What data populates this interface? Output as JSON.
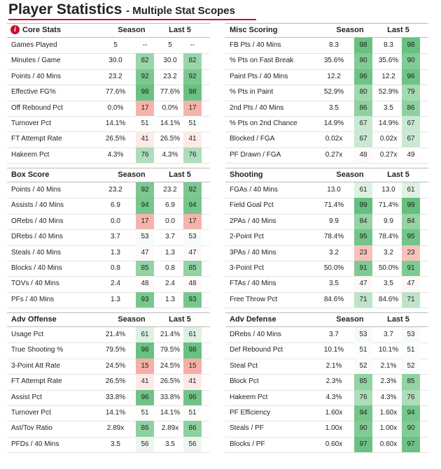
{
  "header": {
    "title": "Player Statistics",
    "subtitle": "- Multiple Stat Scopes"
  },
  "sections": [
    {
      "title": "Core Stats",
      "columns": [
        "Season",
        "Last 5"
      ],
      "rows": [
        [
          "Games Played",
          "5",
          "--",
          "5",
          "--"
        ],
        [
          "Minutes / Game",
          "30.0",
          82,
          "30.0",
          82
        ],
        [
          "Points / 40 Mins",
          "23.2",
          92,
          "23.2",
          92
        ],
        [
          "Effective FG%",
          "77.6%",
          98,
          "77.6%",
          98
        ],
        [
          "Off Rebound Pct",
          "0.0%",
          17,
          "0.0%",
          17
        ],
        [
          "Turnover Pct",
          "14.1%",
          51,
          "14.1%",
          51
        ],
        [
          "FT Attempt Rate",
          "26.5%",
          41,
          "26.5%",
          41
        ],
        [
          "Hakeem Pct",
          "4.3%",
          76,
          "4.3%",
          76
        ]
      ]
    },
    {
      "title": "Misc Scoring",
      "columns": [
        "Season",
        "Last 5"
      ],
      "rows": [
        [
          "FB Pts / 40 Mins",
          "8.3",
          98,
          "8.3",
          98
        ],
        [
          "% Pts on Fast Break",
          "35.6%",
          90,
          "35.6%",
          90
        ],
        [
          "Paint Pts / 40 Mins",
          "12.2",
          96,
          "12.2",
          96
        ],
        [
          "% Pts in Paint",
          "52.9%",
          80,
          "52.9%",
          79
        ],
        [
          "2nd Pts / 40 Mins",
          "3.5",
          86,
          "3.5",
          86
        ],
        [
          "% Pts on 2nd Chance",
          "14.9%",
          67,
          "14.9%",
          67
        ],
        [
          "Blocked / FGA",
          "0.02x",
          67,
          "0.02x",
          67
        ],
        [
          "PF Drawn / FGA",
          "0.27x",
          48,
          "0.27x",
          49
        ]
      ]
    },
    {
      "title": "Box Score",
      "columns": [
        "Season",
        "Last 5"
      ],
      "rows": [
        [
          "Points / 40 Mins",
          "23.2",
          92,
          "23.2",
          92
        ],
        [
          "Assists / 40 Mins",
          "6.9",
          94,
          "6.9",
          94
        ],
        [
          "ORebs / 40 Mins",
          "0.0",
          17,
          "0.0",
          17
        ],
        [
          "DRebs / 40 Mins",
          "3.7",
          53,
          "3.7",
          53
        ],
        [
          "Steals / 40 Mins",
          "1.3",
          47,
          "1.3",
          47
        ],
        [
          "Blocks / 40 Mins",
          "0.8",
          85,
          "0.8",
          85
        ],
        [
          "TOVs / 40 Mins",
          "2.4",
          48,
          "2.4",
          48
        ],
        [
          "PFs / 40 Mins",
          "1.3",
          93,
          "1.3",
          93
        ]
      ]
    },
    {
      "title": "Shooting",
      "columns": [
        "Season",
        "Last 5"
      ],
      "rows": [
        [
          "FGAs / 40 Mins",
          "13.0",
          61,
          "13.0",
          61
        ],
        [
          "Field Goal Pct",
          "71.4%",
          99,
          "71.4%",
          99
        ],
        [
          "2PAs / 40 Mins",
          "9.9",
          84,
          "9.9",
          84
        ],
        [
          "2-Point Pct",
          "78.4%",
          95,
          "78.4%",
          95
        ],
        [
          "3PAs / 40 Mins",
          "3.2",
          23,
          "3.2",
          23
        ],
        [
          "3-Point Pct",
          "50.0%",
          91,
          "50.0%",
          91
        ],
        [
          "FTAs / 40 Mins",
          "3.5",
          47,
          "3.5",
          47
        ],
        [
          "Free Throw Pct",
          "84.6%",
          71,
          "84.6%",
          71
        ]
      ]
    },
    {
      "title": "Adv Offense",
      "columns": [
        "Season",
        "Last 5"
      ],
      "rows": [
        [
          "Usage Pct",
          "21.4%",
          61,
          "21.4%",
          61
        ],
        [
          "True Shooting %",
          "79.5%",
          98,
          "79.5%",
          98
        ],
        [
          "3-Point Att Rate",
          "24.5%",
          15,
          "24.5%",
          15
        ],
        [
          "FT Attempt Rate",
          "26.5%",
          41,
          "26.5%",
          41
        ],
        [
          "Assist Pct",
          "33.8%",
          96,
          "33.8%",
          96
        ],
        [
          "Turnover Pct",
          "14.1%",
          51,
          "14.1%",
          51
        ],
        [
          "Ast/Tov Ratio",
          "2.89x",
          86,
          "2.89x",
          86
        ],
        [
          "PFDs / 40 Mins",
          "3.5",
          56,
          "3.5",
          56
        ]
      ]
    },
    {
      "title": "Adv Defense",
      "columns": [
        "Season",
        "Last 5"
      ],
      "rows": [
        [
          "DRebs / 40 Mins",
          "3.7",
          53,
          "3.7",
          53
        ],
        [
          "Def Rebound Pct",
          "10.1%",
          51,
          "10.1%",
          51
        ],
        [
          "Steal Pct",
          "2.1%",
          52,
          "2.1%",
          52
        ],
        [
          "Block Pct",
          "2.3%",
          85,
          "2.3%",
          85
        ],
        [
          "Hakeem Pct",
          "4.3%",
          76,
          "4.3%",
          76
        ],
        [
          "PF Efficiency",
          "1.60x",
          94,
          "1.60x",
          94
        ],
        [
          "Steals / PF",
          "1.00x",
          90,
          "1.00x",
          90
        ],
        [
          "Blocks / PF",
          "0.60x",
          97,
          "0.60x",
          97
        ]
      ]
    }
  ]
}
